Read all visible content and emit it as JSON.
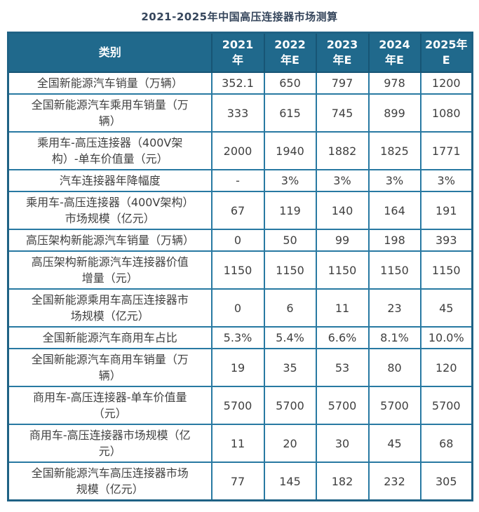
{
  "colors": {
    "header_bg": "#20698c",
    "header_text": "#ffffff",
    "grid_border": "#2879a2",
    "outer_border": "#1f6285",
    "title_text": "#36465c",
    "cell_text": "#3f3f3f",
    "page_bg": "#ffffff"
  },
  "chart_data": {
    "type": "table",
    "title": "2021-2025年中国高压连接器市场测算",
    "columns": [
      {
        "label": "类别",
        "lines": [
          "类别"
        ]
      },
      {
        "label": "2021年",
        "lines": [
          "2021",
          "年"
        ]
      },
      {
        "label": "2022年E",
        "lines": [
          "2022",
          "年E"
        ]
      },
      {
        "label": "2023年E",
        "lines": [
          "2023",
          "年E"
        ]
      },
      {
        "label": "2024年E",
        "lines": [
          "2024",
          "年E"
        ]
      },
      {
        "label": "2025年E",
        "lines": [
          "2025年",
          "E"
        ]
      }
    ],
    "rows": [
      {
        "label": "全国新能源汽车销量（万辆）",
        "values": [
          "352.1",
          "650",
          "797",
          "978",
          "1200"
        ]
      },
      {
        "label": "全国新能源汽车乘用车销量（万辆）",
        "values": [
          "333",
          "615",
          "745",
          "899",
          "1080"
        ]
      },
      {
        "label": "乘用车-高压连接器（400V架构）-单车价值量（元）",
        "values": [
          "2000",
          "1940",
          "1882",
          "1825",
          "1771"
        ]
      },
      {
        "label": "汽车连接器年降幅度",
        "values": [
          "-",
          "3%",
          "3%",
          "3%",
          "3%"
        ]
      },
      {
        "label": "乘用车-高压连接器（400V架构）市场规模（亿元）",
        "values": [
          "67",
          "119",
          "140",
          "164",
          "191"
        ]
      },
      {
        "label": "高压架构新能源汽车销量（万辆）",
        "values": [
          "0",
          "50",
          "99",
          "198",
          "393"
        ]
      },
      {
        "label": "高压架构新能源汽车连接器价值增量（元）",
        "values": [
          "1150",
          "1150",
          "1150",
          "1150",
          "1150"
        ]
      },
      {
        "label": "全国新能源乘用车高压连接器市场规模（亿元）",
        "values": [
          "0",
          "6",
          "11",
          "23",
          "45"
        ]
      },
      {
        "label": "全国新能源汽车商用车占比",
        "values": [
          "5.3%",
          "5.4%",
          "6.6%",
          "8.1%",
          "10.0%"
        ]
      },
      {
        "label": "全国新能源汽车商用车销量（万辆）",
        "values": [
          "19",
          "35",
          "53",
          "80",
          "120"
        ]
      },
      {
        "label": "商用车-高压连接器-单车价值量（元）",
        "values": [
          "5700",
          "5700",
          "5700",
          "5700",
          "5700"
        ]
      },
      {
        "label": "商用车-高压连接器市场规模（亿元）",
        "values": [
          "11",
          "20",
          "30",
          "45",
          "68"
        ]
      },
      {
        "label": "全国新能源汽车高压连接器市场规模（亿元）",
        "values": [
          "77",
          "145",
          "182",
          "232",
          "305"
        ]
      }
    ]
  }
}
